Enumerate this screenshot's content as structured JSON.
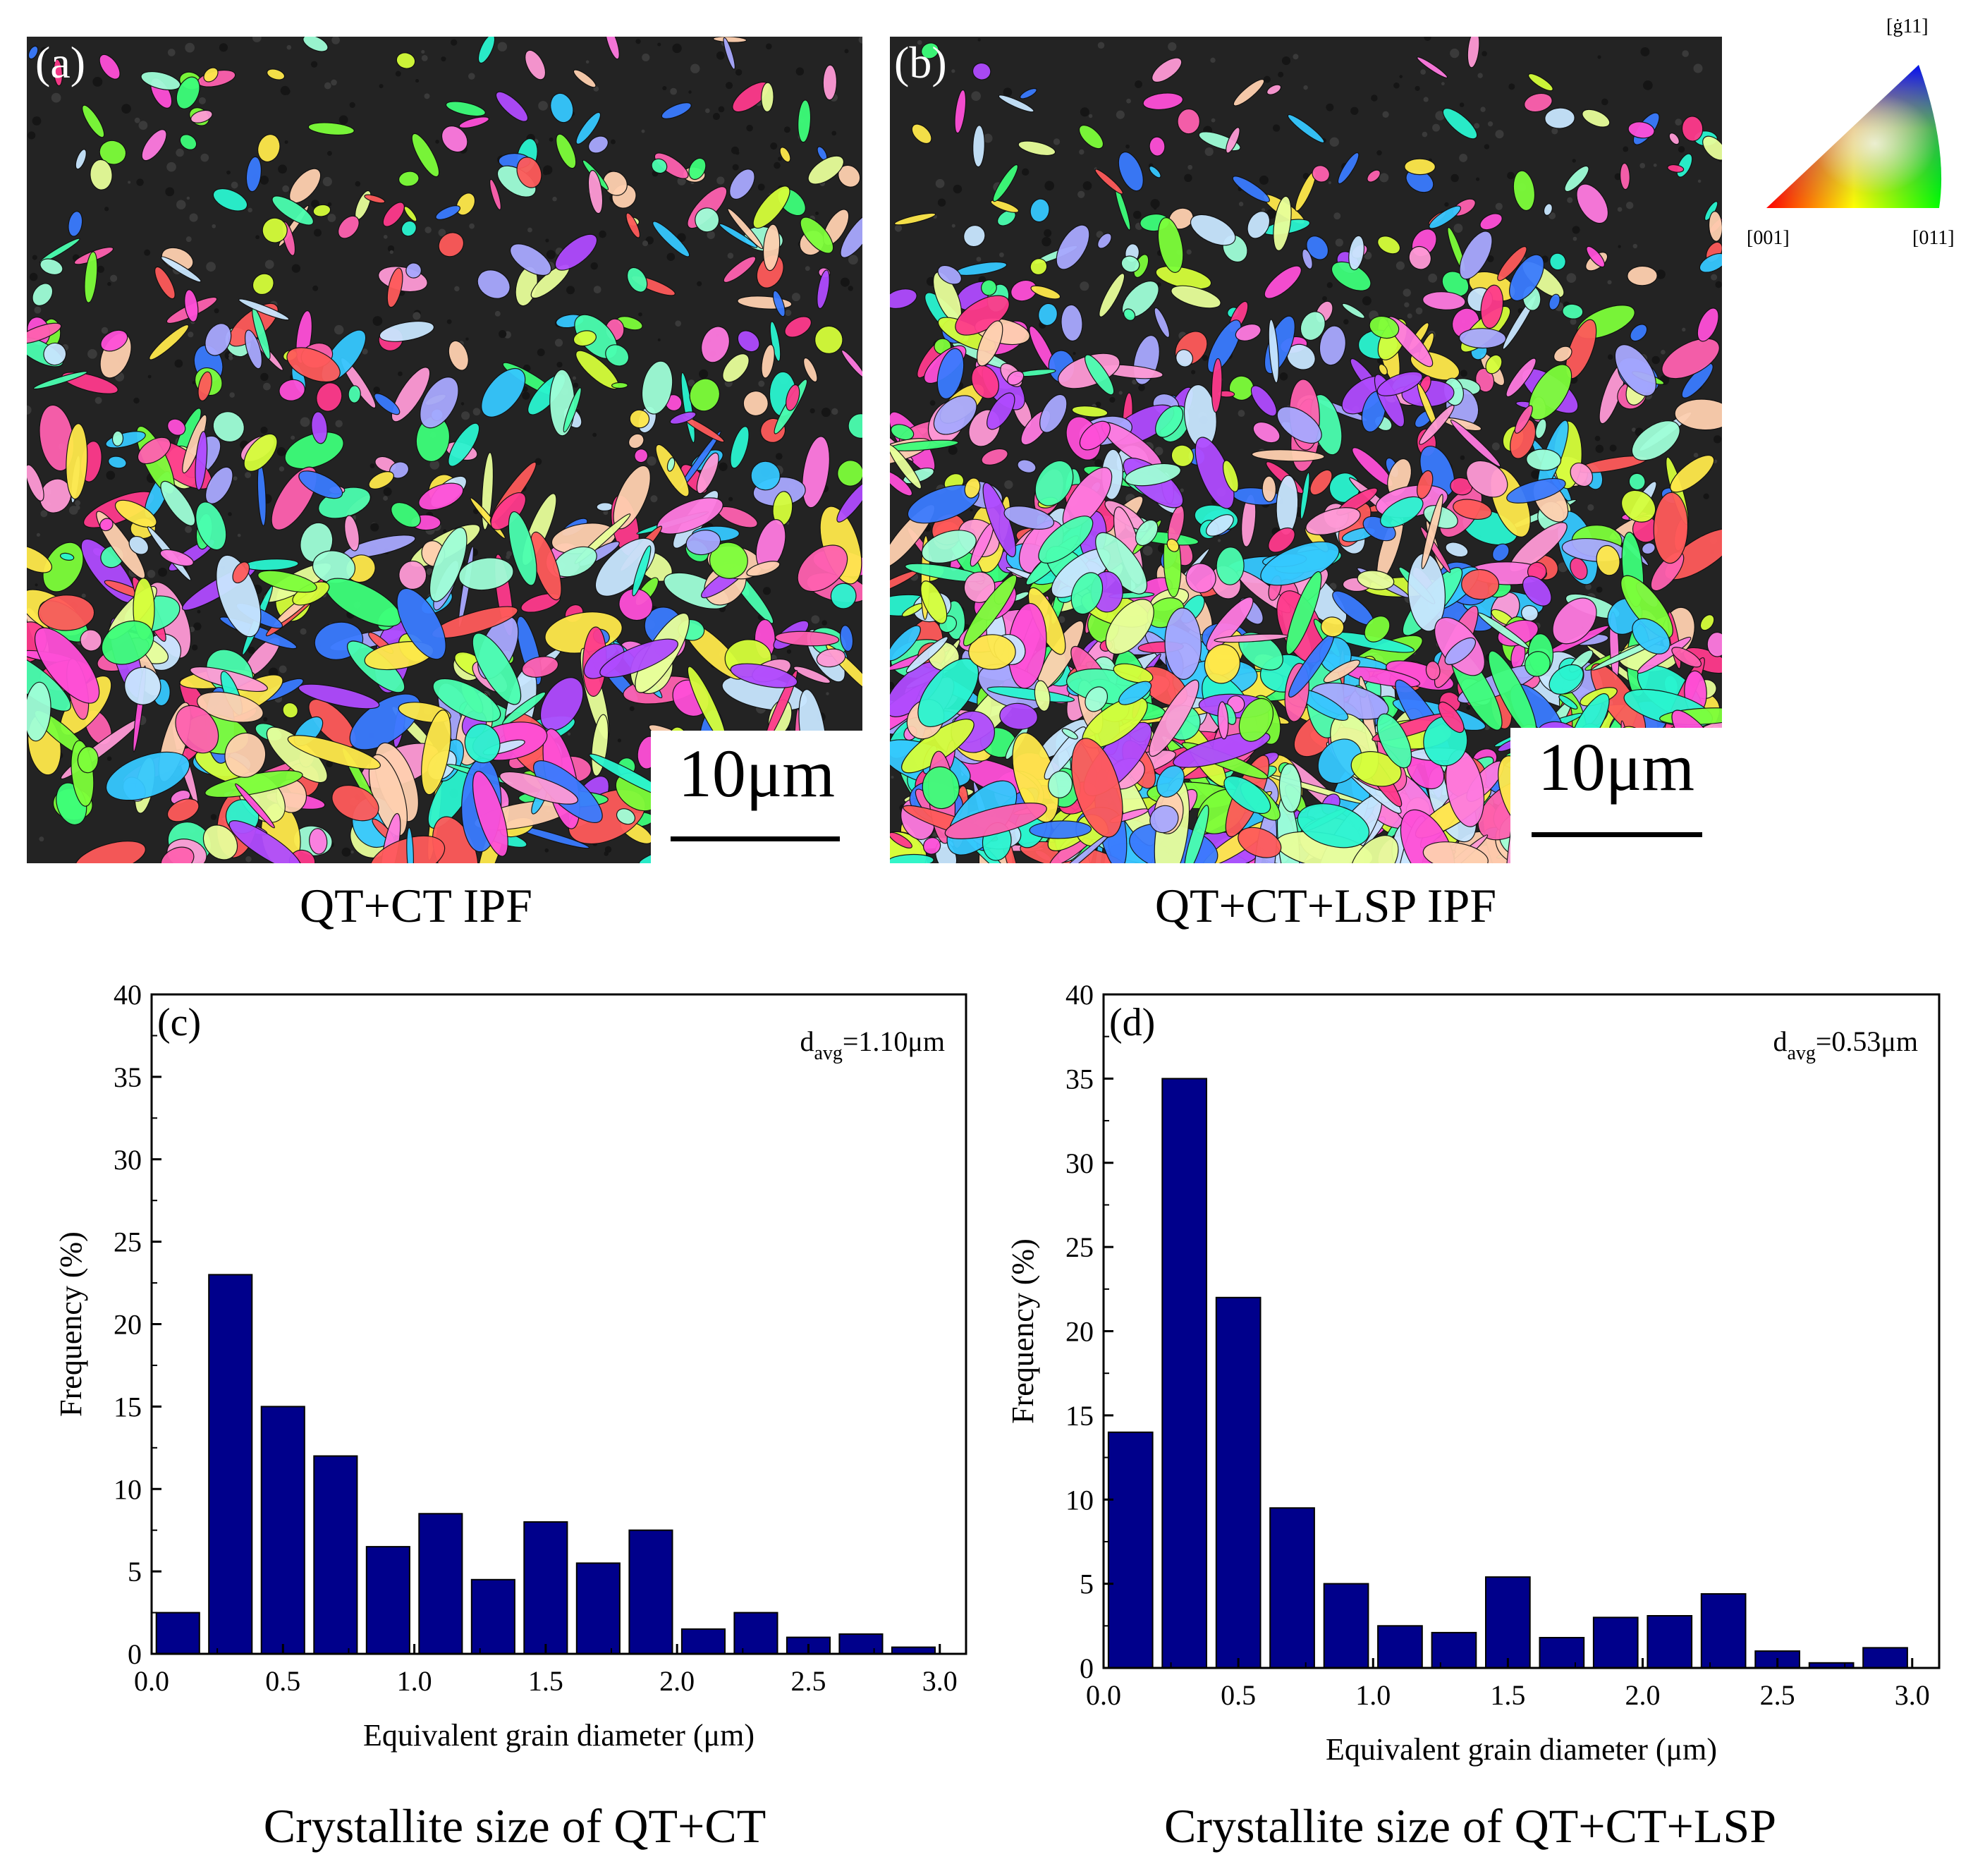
{
  "figure": {
    "panels": [
      {
        "id": "a",
        "label": "(a)",
        "caption": "QT+CT IPF",
        "scale_text": "10μm"
      },
      {
        "id": "b",
        "label": "(b)",
        "caption": "QT+CT+LSP IPF",
        "scale_text": "10μm"
      }
    ],
    "ipf_key": {
      "top_label": "[ġ11]",
      "left_label": "[001]",
      "right_label": "[011]",
      "colors": {
        "c001": "#ff0000",
        "c011": "#00ff00",
        "c111": "#0000ff"
      }
    },
    "chart_captions": [
      "Crystallite size of QT+CT",
      "Crystallite size of QT+CT+LSP"
    ]
  },
  "chart_data": [
    {
      "type": "bar",
      "panel_label": "(c)",
      "annotation": {
        "base": "d",
        "sub": "avg",
        "value": "=1.10μm"
      },
      "xlabel": "Equivalent grain diameter (μm)",
      "ylabel": "Frequency (%)",
      "xlim": [
        0.0,
        3.1
      ],
      "ylim": [
        0,
        40
      ],
      "xticks": [
        "0.0",
        "0.5",
        "1.0",
        "1.5",
        "2.0",
        "2.5",
        "3.0"
      ],
      "yticks": [
        "0",
        "5",
        "10",
        "15",
        "20",
        "25",
        "30",
        "35",
        "40"
      ],
      "bar_color": "#00008b",
      "x": [
        0.2,
        0.4,
        0.6,
        0.8,
        1.0,
        1.2,
        1.4,
        1.6,
        1.8,
        2.0,
        2.2,
        2.4,
        2.6,
        2.8,
        3.0
      ],
      "values": [
        2.5,
        23,
        15,
        12,
        6.5,
        8.5,
        4.5,
        8,
        5.5,
        7.5,
        1.5,
        2.5,
        1,
        1.2,
        0.4
      ]
    },
    {
      "type": "bar",
      "panel_label": "(d)",
      "annotation": {
        "base": "d",
        "sub": "avg",
        "value": "=0.53μm"
      },
      "xlabel": "Equivalent grain diameter (μm)",
      "ylabel": "Frequency (%)",
      "xlim": [
        0.0,
        3.1
      ],
      "ylim": [
        0,
        40
      ],
      "xticks": [
        "0.0",
        "0.5",
        "1.0",
        "1.5",
        "2.0",
        "2.5",
        "3.0"
      ],
      "yticks": [
        "0",
        "5",
        "10",
        "15",
        "20",
        "25",
        "30",
        "35",
        "40"
      ],
      "bar_color": "#00008b",
      "x": [
        0.2,
        0.4,
        0.6,
        0.8,
        1.0,
        1.2,
        1.4,
        1.6,
        1.8,
        2.0,
        2.2,
        2.4,
        2.6,
        2.8,
        3.0
      ],
      "values": [
        14,
        35,
        22,
        9.5,
        5,
        2.5,
        2.1,
        5.4,
        1.8,
        3,
        3.1,
        4.4,
        1,
        0.3,
        1.2
      ]
    }
  ]
}
